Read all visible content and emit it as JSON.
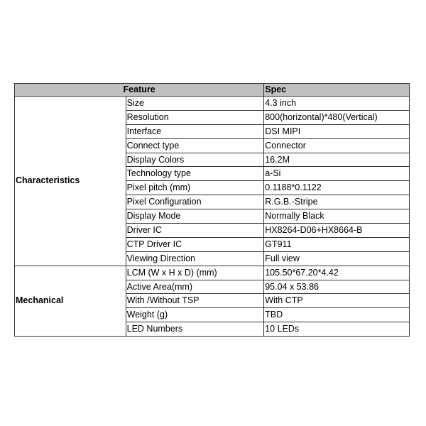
{
  "header": {
    "feature": "Feature",
    "spec": "Spec"
  },
  "groups": [
    {
      "name": "Characteristics",
      "rows": [
        [
          "Size",
          "4.3 inch"
        ],
        [
          "Resolution",
          "800(horizontal)*480(Vertical)"
        ],
        [
          "Interface",
          "DSI MIPI"
        ],
        [
          "Connect type",
          "Connector"
        ],
        [
          "Display Colors",
          "16.2M"
        ],
        [
          "Technology type",
          "a-Si"
        ],
        [
          "Pixel pitch (mm)",
          "0.1188*0.1122"
        ],
        [
          "Pixel Configuration",
          "R.G.B.-Stripe"
        ],
        [
          "Display Mode",
          "Normally Black"
        ],
        [
          "Driver IC",
          "HX8264-D06+HX8664-B"
        ],
        [
          "CTP Driver IC",
          "GT911"
        ],
        [
          "Viewing Direction",
          "Full view"
        ]
      ]
    },
    {
      "name": "Mechanical",
      "rows": [
        [
          "LCM (W x H x D) (mm)",
          "105.50*67.20*4.42"
        ],
        [
          "Active Area(mm)",
          "95.04 x 53.86"
        ],
        [
          "With /Without TSP",
          "With CTP"
        ],
        [
          "Weight (g)",
          "TBD"
        ],
        [
          "LED Numbers",
          "10 LEDs"
        ]
      ]
    }
  ]
}
